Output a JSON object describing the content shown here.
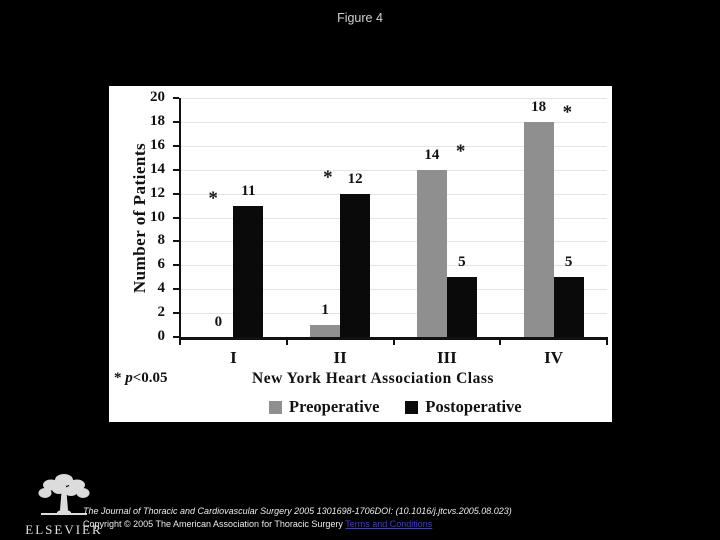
{
  "page": {
    "title": "Figure 4",
    "background_color": "#000000",
    "figure_background": "#ffffff"
  },
  "chart_data": {
    "type": "bar",
    "categories": [
      "I",
      "II",
      "III",
      "IV"
    ],
    "series": [
      {
        "name": "Preoperative",
        "color": "#8f8f8f",
        "values": [
          0,
          1,
          14,
          18
        ]
      },
      {
        "name": "Postoperative",
        "color": "#0a0a0a",
        "values": [
          11,
          12,
          5,
          5
        ]
      }
    ],
    "xlabel": "New York Heart Association Class",
    "ylabel": "Number of Patients",
    "ylim": [
      0,
      20
    ],
    "ytick_step": 2,
    "grid": true,
    "legend_position": "bottom",
    "note_parts": {
      "star": "* ",
      "p": "p",
      "rest": "<0.05"
    },
    "significance_marks": [
      {
        "category": "I",
        "at_value": 11.5,
        "dx": -20
      },
      {
        "category": "II",
        "at_value": 13.2,
        "dx": -12
      },
      {
        "category": "III",
        "at_value": 15.4,
        "dx": 14
      },
      {
        "category": "IV",
        "at_value": 18.7,
        "dx": 14
      }
    ]
  },
  "footer": {
    "publisher_name": "ELSEVIER",
    "citation_line1": "The Journal of Thoracic and Cardiovascular Surgery 2005 1301698-1706DOI: (10.1016/j.jtcvs.2005.08.023)",
    "copyright_line": "Copyright © 2005 The American Association for Thoracic Surgery ",
    "terms_link": "Terms and Conditions",
    "link_color": "#3c3cd8"
  }
}
